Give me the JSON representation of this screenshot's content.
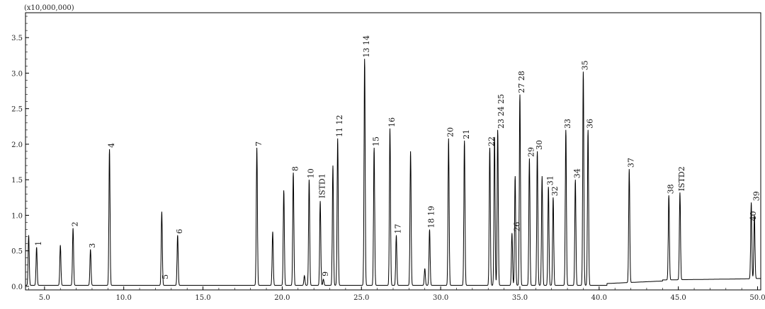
{
  "chart_data": {
    "type": "line",
    "title": "",
    "xlabel": "",
    "ylabel": "",
    "y_scale_label": "(x10,000,000)",
    "xlim": [
      3.8,
      50.2
    ],
    "ylim": [
      -0.05,
      3.85
    ],
    "x_ticks": [
      5.0,
      10.0,
      15.0,
      20.0,
      25.0,
      30.0,
      35.0,
      40.0,
      45.0,
      50.0
    ],
    "x_tick_labels": [
      "5.0",
      "10.0",
      "15.0",
      "20.0",
      "25.0",
      "30.0",
      "35.0",
      "40.0",
      "45.0",
      "50.0"
    ],
    "y_ticks": [
      0.0,
      0.5,
      1.0,
      1.5,
      2.0,
      2.5,
      3.0,
      3.5
    ],
    "y_tick_labels": [
      "0.0",
      "0.5",
      "1.0",
      "1.5",
      "2.0",
      "2.5",
      "3.0",
      "3.5"
    ],
    "grid": false,
    "line_color": "#000000",
    "series": [
      {
        "peaks": [
          {
            "x": 4.0,
            "y": 0.72
          },
          {
            "x": 4.5,
            "y": 0.55
          },
          {
            "x": 6.0,
            "y": 0.58
          },
          {
            "x": 6.8,
            "y": 0.82
          },
          {
            "x": 7.9,
            "y": 0.52
          },
          {
            "x": 9.1,
            "y": 1.93
          },
          {
            "x": 12.4,
            "y": 1.05
          },
          {
            "x": 13.4,
            "y": 0.72
          },
          {
            "x": 18.4,
            "y": 1.95
          },
          {
            "x": 19.4,
            "y": 0.77
          },
          {
            "x": 20.1,
            "y": 1.35
          },
          {
            "x": 20.7,
            "y": 1.6
          },
          {
            "x": 21.4,
            "y": 0.15
          },
          {
            "x": 21.7,
            "y": 1.5
          },
          {
            "x": 22.4,
            "y": 1.2
          },
          {
            "x": 22.6,
            "y": 0.1
          },
          {
            "x": 23.2,
            "y": 1.7
          },
          {
            "x": 23.5,
            "y": 2.08
          },
          {
            "x": 25.2,
            "y": 3.2
          },
          {
            "x": 25.8,
            "y": 1.95
          },
          {
            "x": 26.8,
            "y": 2.22
          },
          {
            "x": 27.2,
            "y": 0.72
          },
          {
            "x": 28.1,
            "y": 1.9
          },
          {
            "x": 29.0,
            "y": 0.25
          },
          {
            "x": 29.3,
            "y": 0.8
          },
          {
            "x": 30.5,
            "y": 2.08
          },
          {
            "x": 31.5,
            "y": 2.05
          },
          {
            "x": 33.1,
            "y": 1.95
          },
          {
            "x": 33.4,
            "y": 2.1
          },
          {
            "x": 33.6,
            "y": 2.2
          },
          {
            "x": 34.5,
            "y": 0.75
          },
          {
            "x": 34.7,
            "y": 1.55
          },
          {
            "x": 35.0,
            "y": 2.7
          },
          {
            "x": 35.6,
            "y": 1.8
          },
          {
            "x": 36.1,
            "y": 1.9
          },
          {
            "x": 36.4,
            "y": 1.55
          },
          {
            "x": 36.8,
            "y": 1.4
          },
          {
            "x": 37.1,
            "y": 1.25
          },
          {
            "x": 37.9,
            "y": 2.2
          },
          {
            "x": 38.5,
            "y": 1.5
          },
          {
            "x": 39.0,
            "y": 3.02
          },
          {
            "x": 39.3,
            "y": 2.2
          },
          {
            "x": 41.9,
            "y": 1.65
          },
          {
            "x": 44.4,
            "y": 1.28
          },
          {
            "x": 45.1,
            "y": 1.32
          },
          {
            "x": 49.6,
            "y": 1.18
          },
          {
            "x": 49.8,
            "y": 1.0
          }
        ]
      }
    ],
    "annotations": [
      {
        "text": "1",
        "x": 4.6,
        "y": 0.55
      },
      {
        "text": "2",
        "x": 6.9,
        "y": 0.82
      },
      {
        "text": "3",
        "x": 8.0,
        "y": 0.52
      },
      {
        "text": "4",
        "x": 9.2,
        "y": 1.93
      },
      {
        "text": "5",
        "x": 12.6,
        "y": 0.08
      },
      {
        "text": "6",
        "x": 13.5,
        "y": 0.72
      },
      {
        "text": "7",
        "x": 18.5,
        "y": 1.95
      },
      {
        "text": "8",
        "x": 20.8,
        "y": 1.6
      },
      {
        "text": "9",
        "x": 22.7,
        "y": 0.12
      },
      {
        "text": "10",
        "x": 21.8,
        "y": 1.5
      },
      {
        "text": "ISTD1",
        "x": 22.5,
        "y": 1.22
      },
      {
        "text": "11 12",
        "x": 23.6,
        "y": 2.08
      },
      {
        "text": "13 14",
        "x": 25.3,
        "y": 3.2
      },
      {
        "text": "15",
        "x": 25.9,
        "y": 1.95
      },
      {
        "text": "16",
        "x": 26.9,
        "y": 2.22
      },
      {
        "text": "17",
        "x": 27.3,
        "y": 0.72
      },
      {
        "text": "18 19",
        "x": 29.4,
        "y": 0.8
      },
      {
        "text": "20",
        "x": 30.6,
        "y": 2.08
      },
      {
        "text": "21",
        "x": 31.6,
        "y": 2.05
      },
      {
        "text": "22",
        "x": 33.2,
        "y": 1.95
      },
      {
        "text": "23 24 25",
        "x": 33.8,
        "y": 2.2
      },
      {
        "text": "26",
        "x": 34.8,
        "y": 0.75
      },
      {
        "text": "27 28",
        "x": 35.1,
        "y": 2.7
      },
      {
        "text": "29",
        "x": 35.7,
        "y": 1.8
      },
      {
        "text": "30",
        "x": 36.2,
        "y": 1.9
      },
      {
        "text": "31",
        "x": 36.9,
        "y": 1.4
      },
      {
        "text": "32",
        "x": 37.2,
        "y": 1.25
      },
      {
        "text": "33",
        "x": 38.0,
        "y": 2.2
      },
      {
        "text": "34",
        "x": 38.6,
        "y": 1.5
      },
      {
        "text": "35",
        "x": 39.1,
        "y": 3.02
      },
      {
        "text": "36",
        "x": 39.4,
        "y": 2.2
      },
      {
        "text": "37",
        "x": 42.0,
        "y": 1.65
      },
      {
        "text": "38",
        "x": 44.5,
        "y": 1.28
      },
      {
        "text": "ISTD2",
        "x": 45.2,
        "y": 1.32
      },
      {
        "text": "39",
        "x": 49.9,
        "y": 1.18
      },
      {
        "text": "40",
        "x": 49.7,
        "y": 0.9
      }
    ]
  }
}
